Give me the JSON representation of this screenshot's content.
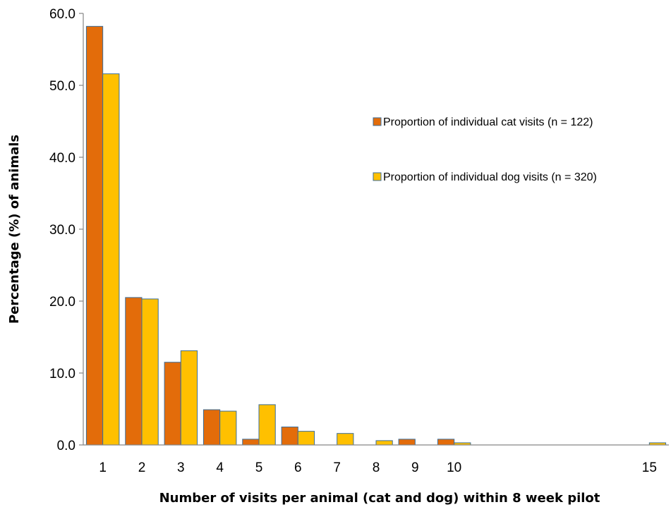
{
  "chart_data": {
    "type": "bar",
    "title": "",
    "xlabel": "Number of visits per animal (cat and dog) within 8 week pilot",
    "ylabel": "Percentage (%) of animals",
    "x": [
      1,
      2,
      3,
      4,
      5,
      6,
      7,
      8,
      9,
      10,
      15
    ],
    "x_tick_labels": [
      "1",
      "2",
      "3",
      "4",
      "5",
      "6",
      "7",
      "8",
      "9",
      "10",
      "15"
    ],
    "x_range": [
      0.5,
      15.5
    ],
    "ylim": [
      0,
      60
    ],
    "y_ticks": [
      0,
      10,
      20,
      30,
      40,
      50,
      60
    ],
    "y_tick_labels": [
      "0.0",
      "10.0",
      "20.0",
      "30.0",
      "40.0",
      "50.0",
      "60.0"
    ],
    "grid": false,
    "legend_position": "right",
    "series": [
      {
        "name": "Proportion of individual cat visits (n = 122)",
        "color": "#E36C0A",
        "values": [
          58.2,
          20.5,
          11.5,
          4.9,
          0.8,
          2.5,
          0,
          0,
          0.8,
          0.8,
          0
        ]
      },
      {
        "name": "Proportion of individual dog visits (n = 320)",
        "color": "#FFC000",
        "values": [
          51.6,
          20.3,
          13.1,
          4.7,
          5.6,
          1.9,
          1.6,
          0.6,
          0,
          0.3,
          0.3
        ]
      }
    ]
  }
}
